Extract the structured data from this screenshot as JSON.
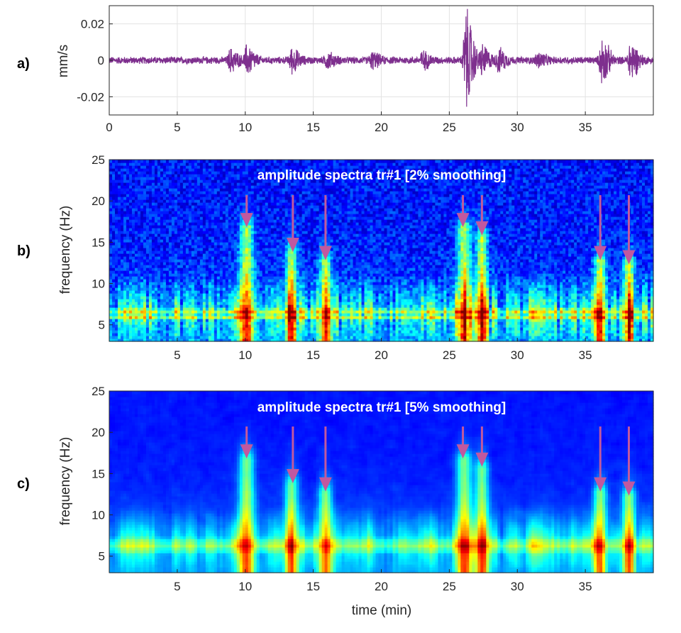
{
  "chart_data": [
    {
      "type": "line",
      "panel_label": "a)",
      "ylabel": "mm/s",
      "xlim": [
        0,
        40
      ],
      "ylim": [
        -0.03,
        0.03
      ],
      "xticks": [
        0,
        5,
        10,
        15,
        20,
        25,
        30,
        35
      ],
      "yticks": [
        0.02,
        0,
        -0.02
      ],
      "ytick_labels": [
        "0.02",
        "0",
        "-0.02"
      ],
      "grid": true,
      "series_color": "#7e2f8e",
      "background_amplitude": 0.0022,
      "bursts": [
        {
          "t": 8.9,
          "amp": 0.006
        },
        {
          "t": 10.1,
          "amp": 0.008
        },
        {
          "t": 13.4,
          "amp": 0.0065
        },
        {
          "t": 16.0,
          "amp": 0.004
        },
        {
          "t": 19.3,
          "amp": 0.004
        },
        {
          "t": 23.0,
          "amp": 0.0045
        },
        {
          "t": 26.2,
          "amp": 0.03
        },
        {
          "t": 27.4,
          "amp": 0.008
        },
        {
          "t": 28.6,
          "amp": 0.006
        },
        {
          "t": 31.5,
          "amp": 0.004
        },
        {
          "t": 36.2,
          "amp": 0.013
        },
        {
          "t": 38.3,
          "amp": 0.011
        }
      ]
    },
    {
      "type": "heatmap",
      "panel_label": "b)",
      "title": "amplitude spectra tr#1 [2% smoothing]",
      "ylabel": "frequency (Hz)",
      "xlim": [
        0,
        40
      ],
      "ylim": [
        3,
        25
      ],
      "xticks": [
        5,
        10,
        15,
        20,
        25,
        30,
        35
      ],
      "yticks": [
        5,
        10,
        15,
        20,
        25
      ],
      "colormap": "jet",
      "arrow_color": "#c1589f",
      "arrow_times": [
        10.1,
        13.5,
        15.9,
        26.0,
        27.4,
        36.1,
        38.2
      ],
      "events": [
        {
          "t": 10.1,
          "fmax": 17
        },
        {
          "t": 13.4,
          "fmax": 14
        },
        {
          "t": 15.9,
          "fmax": 13
        },
        {
          "t": 26.1,
          "fmax": 17
        },
        {
          "t": 27.4,
          "fmax": 16
        },
        {
          "t": 36.1,
          "fmax": 13
        },
        {
          "t": 38.2,
          "fmax": 12.5
        }
      ],
      "band_hz": [
        6.7,
        6.0
      ]
    },
    {
      "type": "heatmap",
      "panel_label": "c)",
      "title": "amplitude spectra tr#1 [5% smoothing]",
      "ylabel": "frequency (Hz)",
      "xlabel": "time (min)",
      "xlim": [
        0,
        40
      ],
      "ylim": [
        3,
        25
      ],
      "xticks": [
        5,
        10,
        15,
        20,
        25,
        30,
        35
      ],
      "yticks": [
        5,
        10,
        15,
        20,
        25
      ],
      "colormap": "jet",
      "arrow_color": "#c1589f",
      "arrow_times": [
        10.1,
        13.5,
        15.9,
        26.0,
        27.4,
        36.1,
        38.2
      ],
      "events": [
        {
          "t": 10.1,
          "fmax": 17
        },
        {
          "t": 13.4,
          "fmax": 14
        },
        {
          "t": 15.9,
          "fmax": 13
        },
        {
          "t": 26.1,
          "fmax": 17
        },
        {
          "t": 27.4,
          "fmax": 16
        },
        {
          "t": 36.1,
          "fmax": 13
        },
        {
          "t": 38.2,
          "fmax": 12.5
        }
      ],
      "band_hz": [
        6.7,
        6.0
      ]
    }
  ]
}
